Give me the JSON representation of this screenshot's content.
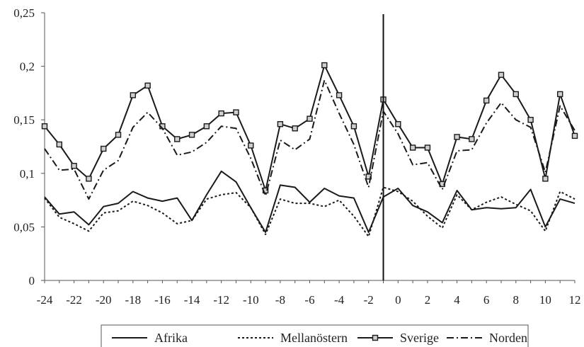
{
  "chart_data": {
    "type": "line",
    "x": [
      -24,
      -23,
      -22,
      -21,
      -20,
      -19,
      -18,
      -17,
      -16,
      -15,
      -14,
      -13,
      -12,
      -11,
      -10,
      -9,
      -8,
      -7,
      -6,
      -5,
      -4,
      -3,
      -2,
      -1,
      0,
      1,
      2,
      3,
      4,
      5,
      6,
      7,
      8,
      9,
      10,
      11,
      12
    ],
    "xticks": [
      -24,
      -22,
      -20,
      -18,
      -16,
      -14,
      -12,
      -10,
      -8,
      -6,
      -4,
      -2,
      0,
      2,
      4,
      6,
      8,
      10,
      12
    ],
    "xlim": [
      -24,
      12
    ],
    "ylim": [
      0,
      0.25
    ],
    "yticks": [
      0,
      0.05,
      0.1,
      0.15,
      0.2,
      0.25
    ],
    "ytick_labels": [
      "0",
      "0,05",
      "0,1",
      "0,15",
      "0,2",
      "0,25"
    ],
    "grid": false,
    "vertical_line_x": -1,
    "legend_position": "bottom",
    "series": [
      {
        "name": "Afrika",
        "style": "solid",
        "color": "#1a1a1a",
        "values": [
          0.078,
          0.062,
          0.064,
          0.052,
          0.069,
          0.072,
          0.083,
          0.077,
          0.074,
          0.077,
          0.056,
          0.08,
          0.102,
          0.092,
          0.068,
          0.045,
          0.089,
          0.087,
          0.073,
          0.086,
          0.079,
          0.077,
          0.045,
          0.078,
          0.086,
          0.07,
          0.064,
          0.054,
          0.084,
          0.066,
          0.068,
          0.067,
          0.068,
          0.085,
          0.05,
          0.076,
          0.072
        ]
      },
      {
        "name": "Mellanöstern",
        "style": "dotted",
        "color": "#1a1a1a",
        "values": [
          0.077,
          0.059,
          0.053,
          0.046,
          0.063,
          0.065,
          0.074,
          0.07,
          0.063,
          0.053,
          0.056,
          0.076,
          0.08,
          0.082,
          0.068,
          0.043,
          0.076,
          0.072,
          0.072,
          0.069,
          0.075,
          0.06,
          0.041,
          0.087,
          0.083,
          0.074,
          0.06,
          0.049,
          0.08,
          0.066,
          0.073,
          0.078,
          0.071,
          0.065,
          0.046,
          0.083,
          0.076
        ]
      },
      {
        "name": "Sverige",
        "style": "solid-square-markers",
        "color": "#1a1a1a",
        "values": [
          0.144,
          0.127,
          0.107,
          0.095,
          0.123,
          0.136,
          0.173,
          0.182,
          0.144,
          0.132,
          0.136,
          0.144,
          0.156,
          0.157,
          0.126,
          0.084,
          0.146,
          0.142,
          0.151,
          0.201,
          0.173,
          0.144,
          0.097,
          0.169,
          0.146,
          0.124,
          0.124,
          0.09,
          0.134,
          0.132,
          0.168,
          0.192,
          0.174,
          0.15,
          0.095,
          0.174,
          0.135
        ]
      },
      {
        "name": "Norden",
        "style": "dash-dot",
        "color": "#1a1a1a",
        "values": [
          0.123,
          0.103,
          0.104,
          0.076,
          0.103,
          0.112,
          0.143,
          0.157,
          0.142,
          0.117,
          0.12,
          0.129,
          0.144,
          0.142,
          0.114,
          0.079,
          0.131,
          0.122,
          0.132,
          0.187,
          0.156,
          0.127,
          0.087,
          0.158,
          0.137,
          0.108,
          0.11,
          0.085,
          0.121,
          0.122,
          0.147,
          0.166,
          0.15,
          0.143,
          0.101,
          0.163,
          0.14
        ]
      }
    ]
  }
}
